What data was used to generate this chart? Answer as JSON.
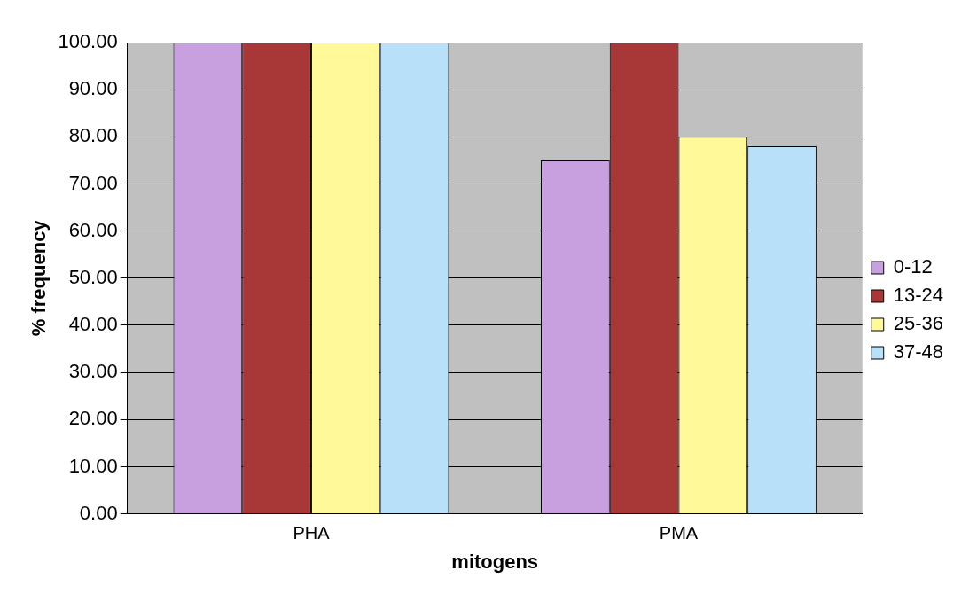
{
  "chart_data": {
    "type": "bar",
    "xlabel": "mitogens",
    "ylabel": "% frequency",
    "categories": [
      "PHA",
      "PMA"
    ],
    "series": [
      {
        "name": "0-12",
        "color": "#c8a0e0",
        "values": [
          100,
          75
        ]
      },
      {
        "name": "13-24",
        "color": "#a83838",
        "values": [
          100,
          100
        ]
      },
      {
        "name": "25-36",
        "color": "#fff99a",
        "values": [
          100,
          80
        ]
      },
      {
        "name": "37-48",
        "color": "#b8e0f8",
        "values": [
          100,
          78
        ]
      }
    ],
    "ylim": [
      0,
      100
    ],
    "yticks": [
      {
        "value": 0,
        "label": "0.00"
      },
      {
        "value": 10,
        "label": "10.00"
      },
      {
        "value": 20,
        "label": "20.00"
      },
      {
        "value": 30,
        "label": "30.00"
      },
      {
        "value": 40,
        "label": "40.00"
      },
      {
        "value": 50,
        "label": "50.00"
      },
      {
        "value": 60,
        "label": "60.00"
      },
      {
        "value": 70,
        "label": "70.00"
      },
      {
        "value": 80,
        "label": "80.00"
      },
      {
        "value": 90,
        "label": "90.00"
      },
      {
        "value": 100,
        "label": "100.00"
      }
    ],
    "grid": "y",
    "legend": "right"
  }
}
